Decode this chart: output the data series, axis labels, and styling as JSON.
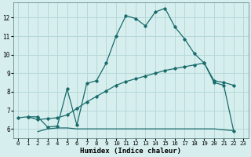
{
  "xlabel": "Humidex (Indice chaleur)",
  "bg_color": "#d6efee",
  "grid_color": "#b8d8d8",
  "line_color": "#1a6b6b",
  "xlim": [
    -0.5,
    23.5
  ],
  "ylim": [
    5.5,
    12.8
  ],
  "xticks": [
    0,
    1,
    2,
    3,
    4,
    5,
    6,
    7,
    8,
    9,
    10,
    11,
    12,
    13,
    14,
    15,
    16,
    17,
    18,
    19,
    20,
    21,
    22,
    23
  ],
  "yticks": [
    6,
    7,
    8,
    9,
    10,
    11,
    12
  ],
  "curve1_x": [
    1,
    2,
    3,
    4,
    5,
    6,
    7,
    8,
    9,
    10,
    11,
    12,
    13,
    14,
    15,
    16,
    17,
    18,
    19,
    20,
    21,
    22
  ],
  "curve1_y": [
    6.65,
    6.65,
    6.1,
    6.15,
    8.15,
    6.2,
    8.45,
    8.6,
    9.55,
    11.0,
    12.1,
    11.95,
    11.55,
    12.3,
    12.5,
    11.5,
    10.85,
    10.05,
    9.55,
    8.5,
    8.35,
    5.9
  ],
  "curve2_x": [
    0,
    1,
    2,
    3,
    4,
    5,
    6,
    7,
    8,
    9,
    10,
    11,
    12,
    13,
    14,
    15,
    16,
    17,
    18,
    19,
    20,
    21,
    22
  ],
  "curve2_y": [
    6.6,
    6.65,
    6.5,
    6.55,
    6.6,
    6.75,
    7.1,
    7.45,
    7.75,
    8.05,
    8.35,
    8.55,
    8.7,
    8.85,
    9.0,
    9.15,
    9.25,
    9.35,
    9.45,
    9.55,
    8.6,
    8.5,
    8.35
  ],
  "curve3_x": [
    2,
    3,
    4,
    5,
    6,
    7,
    8,
    9,
    10,
    11,
    12,
    13,
    14,
    15,
    16,
    17,
    18,
    19,
    20,
    21,
    22
  ],
  "curve3_y": [
    5.85,
    6.0,
    6.05,
    6.05,
    6.0,
    6.0,
    6.0,
    6.0,
    6.0,
    6.0,
    6.0,
    6.0,
    6.0,
    6.0,
    6.0,
    6.0,
    6.0,
    6.0,
    6.0,
    5.95,
    5.9
  ]
}
